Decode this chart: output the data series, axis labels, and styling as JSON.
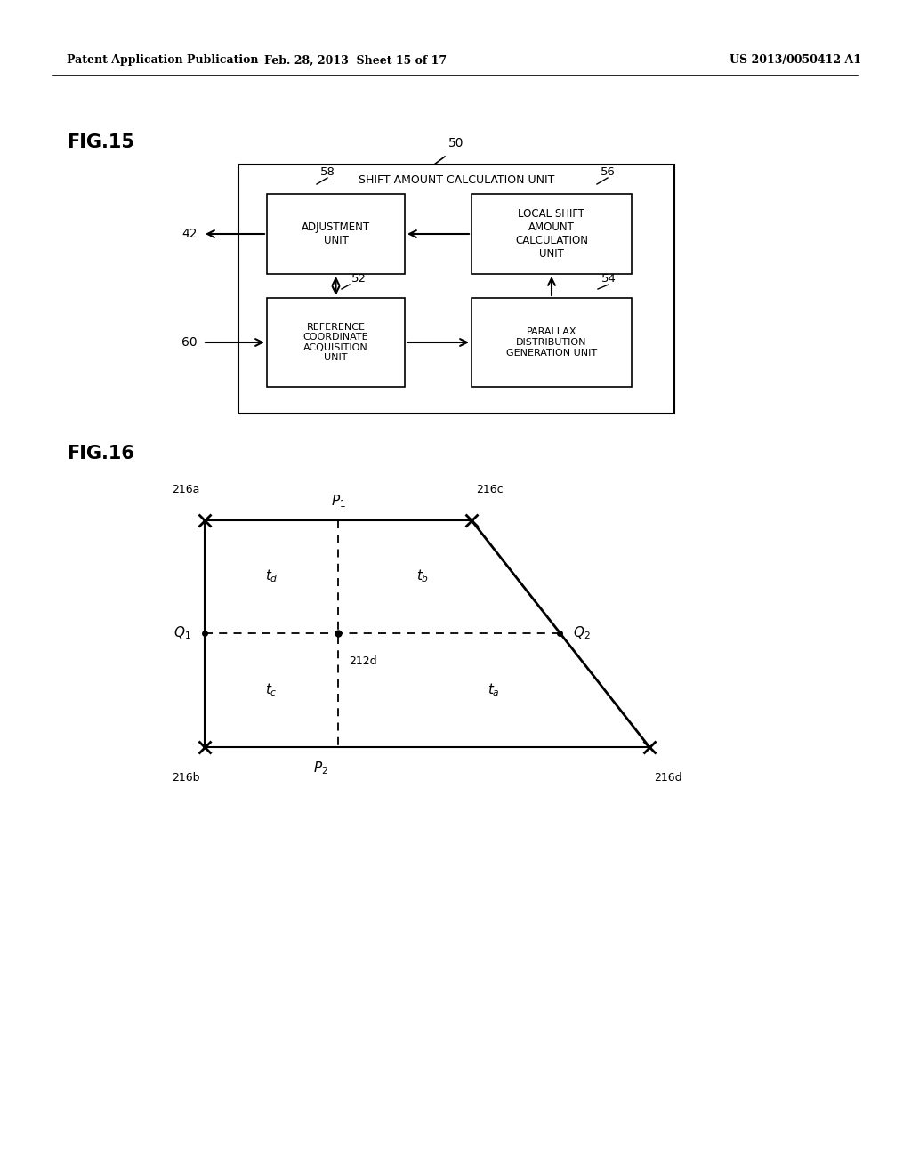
{
  "bg_color": "#ffffff",
  "header_left": "Patent Application Publication",
  "header_mid": "Feb. 28, 2013  Sheet 15 of 17",
  "header_right": "US 2013/0050412 A1",
  "fig15_label": "FIG.15",
  "fig16_label": "FIG.16",
  "outer_box_label": "SHIFT AMOUNT CALCULATION UNIT",
  "outer_box_label_num": "50",
  "box_adj_label": "ADJUSTMENT\nUNIT",
  "box_adj_num": "58",
  "box_lsc_label": "LOCAL SHIFT\nAMOUNT\nCALCULATION\nUNIT",
  "box_lsc_num": "56",
  "box_ref_label": "REFERENCE\nCOORDINATE\nACQUISITION\nUNIT",
  "box_ref_num": "52",
  "box_par_label": "PARALLAX\nDISTRIBUTION\nGENERATION UNIT",
  "box_par_num": "54",
  "label_42": "42",
  "label_60": "60"
}
